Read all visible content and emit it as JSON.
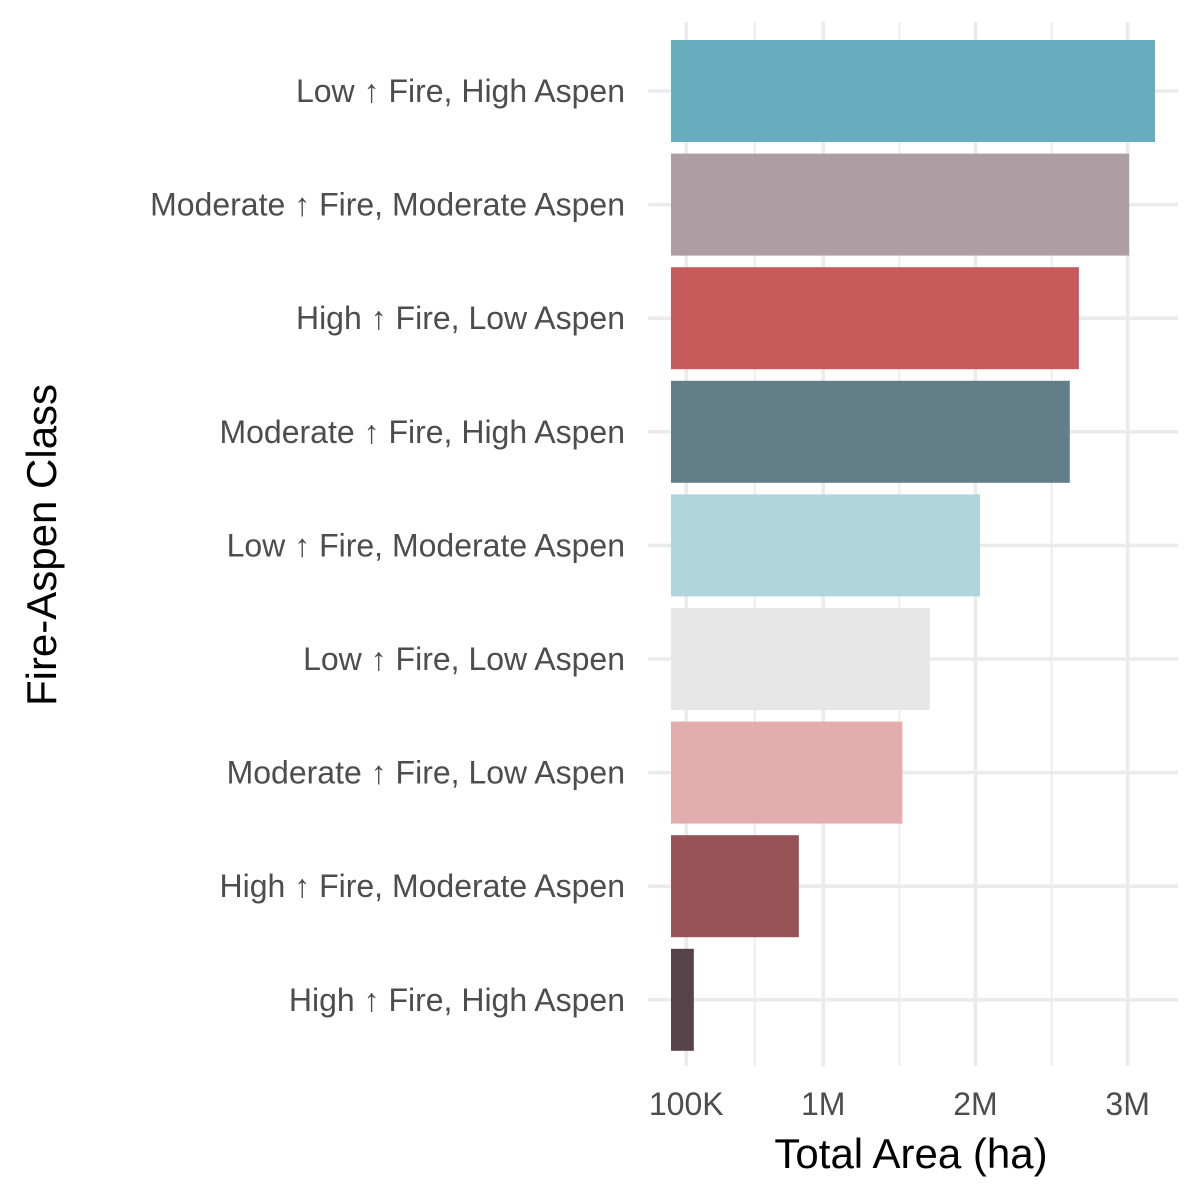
{
  "chart_data": {
    "type": "bar",
    "orientation": "horizontal",
    "xlabel": "Total Area (ha)",
    "ylabel": "Fire-Aspen Class",
    "xlim": [
      0,
      3200000
    ],
    "x_ticks": [
      {
        "value": 100000,
        "label": "100K"
      },
      {
        "value": 1000000,
        "label": "1M"
      },
      {
        "value": 2000000,
        "label": "2M"
      },
      {
        "value": 3000000,
        "label": "3M"
      }
    ],
    "grid": true,
    "categories": [
      "Low ↑ Fire, High Aspen",
      "Moderate ↑ Fire, Moderate Aspen",
      "High ↑ Fire, Low Aspen",
      "Moderate ↑ Fire, High Aspen",
      "Low ↑ Fire, Moderate Aspen",
      "Low ↑ Fire, Low Aspen",
      "Moderate ↑ Fire, Low Aspen",
      "High ↑ Fire, Moderate Aspen",
      "High ↑ Fire, High Aspen"
    ],
    "values": [
      3180000,
      3010000,
      2680000,
      2620000,
      2030000,
      1700000,
      1520000,
      840000,
      150000
    ],
    "colors": [
      "#67adbe",
      "#ad9ea4",
      "#c75b5b",
      "#627f89",
      "#b0d5dd",
      "#e7e7e7",
      "#e3acad",
      "#985357",
      "#564248"
    ]
  }
}
